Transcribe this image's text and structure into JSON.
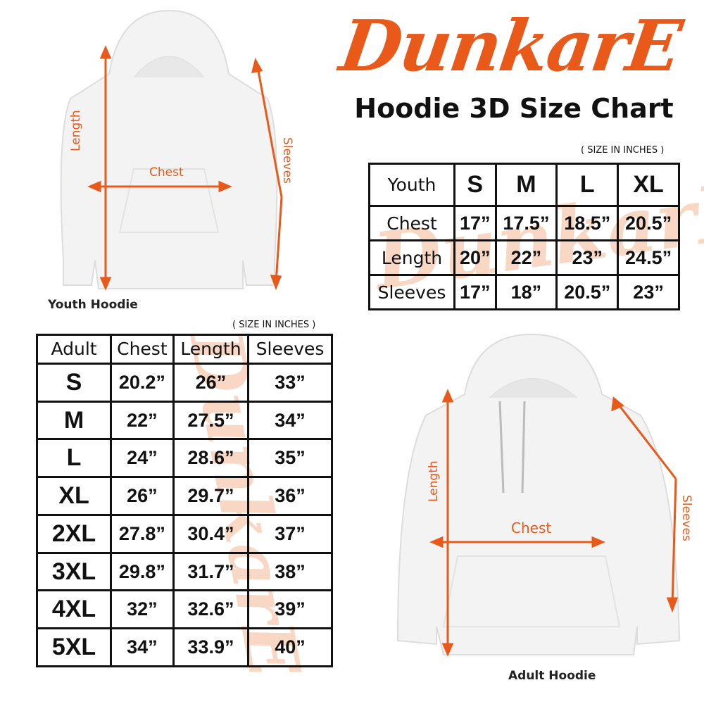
{
  "brand": {
    "logo_text": "DunkarE",
    "accent": "#e8591a"
  },
  "title": "Hoodie 3D Size Chart",
  "youth": {
    "unit_note": "( SIZE IN INCHES )",
    "headers": [
      "Youth",
      "S",
      "M",
      "L",
      "XL"
    ],
    "rows": [
      {
        "label": "Chest",
        "values": [
          "17”",
          "17.5”",
          "18.5”",
          "20.5”"
        ]
      },
      {
        "label": "Length",
        "values": [
          "20”",
          "22”",
          "23”",
          "24.5”"
        ]
      },
      {
        "label": "Sleeves",
        "values": [
          "17”",
          "18”",
          "20.5”",
          "23”"
        ]
      }
    ],
    "image": {
      "caption": "Youth Hoodie",
      "labels": {
        "length": "Length",
        "chest": "Chest",
        "sleeves": "Sleeves"
      }
    }
  },
  "adult": {
    "unit_note": "( SIZE IN INCHES )",
    "headers": [
      "Adult",
      "Chest",
      "Length",
      "Sleeves"
    ],
    "rows": [
      {
        "size": "S",
        "values": [
          "20.2”",
          "26”",
          "33”"
        ]
      },
      {
        "size": "M",
        "values": [
          "22”",
          "27.5”",
          "34”"
        ]
      },
      {
        "size": "L",
        "values": [
          "24”",
          "28.6”",
          "35”"
        ]
      },
      {
        "size": "XL",
        "values": [
          "26”",
          "29.7”",
          "36”"
        ]
      },
      {
        "size": "2XL",
        "values": [
          "27.8”",
          "30.4”",
          "37”"
        ]
      },
      {
        "size": "3XL",
        "values": [
          "29.8”",
          "31.7”",
          "38”"
        ]
      },
      {
        "size": "4XL",
        "values": [
          "32”",
          "32.6”",
          "39”"
        ]
      },
      {
        "size": "5XL",
        "values": [
          "34”",
          "33.9”",
          "40”"
        ]
      }
    ],
    "image": {
      "caption": "Adult Hoodie",
      "labels": {
        "length": "Length",
        "chest": "Chest",
        "sleeves": "Sleeves"
      }
    }
  }
}
